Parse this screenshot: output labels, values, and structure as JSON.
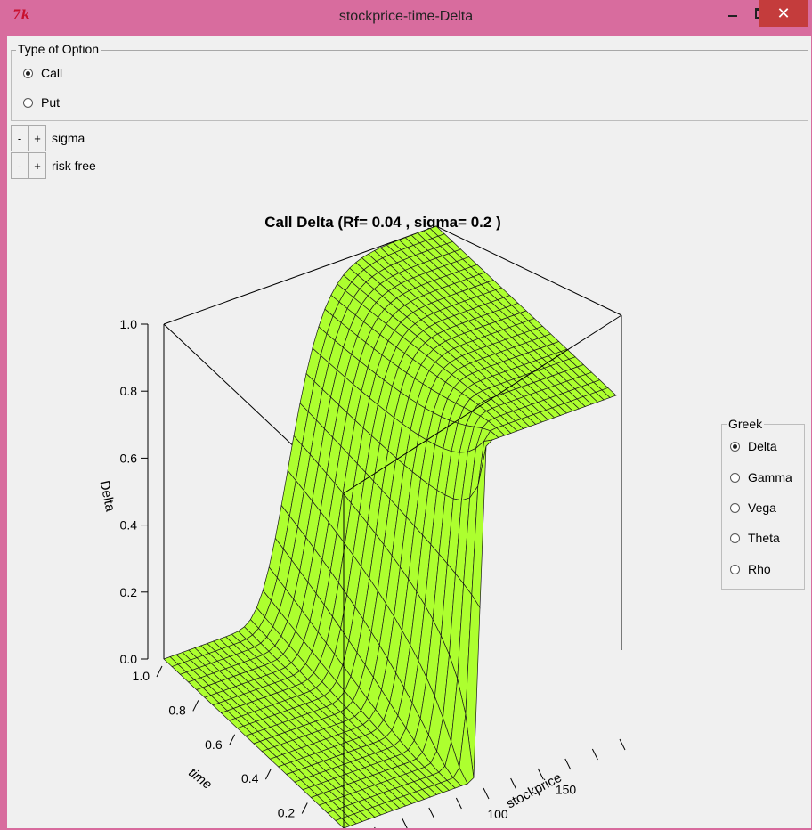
{
  "window": {
    "title": "stockprice-time-Delta",
    "app_icon": "7k",
    "close_glyph": "✕"
  },
  "type_group": {
    "label": "Type of Option",
    "options": [
      {
        "label": "Call",
        "selected": true
      },
      {
        "label": "Put",
        "selected": false
      }
    ]
  },
  "steppers": [
    {
      "minus": "-",
      "plus": "+",
      "label": "sigma"
    },
    {
      "minus": "-",
      "plus": "+",
      "label": "risk free"
    }
  ],
  "greek_group": {
    "label": "Greek",
    "options": [
      {
        "label": "Delta",
        "selected": true
      },
      {
        "label": "Gamma",
        "selected": false
      },
      {
        "label": "Vega",
        "selected": false
      },
      {
        "label": "Theta",
        "selected": false
      },
      {
        "label": "Rho",
        "selected": false
      }
    ]
  },
  "chart_data": {
    "type": "surface",
    "title": "Call Delta (Rf=  0.04 , sigma=  0.2 )",
    "zlabel": "Delta",
    "xlabel": "stockprice",
    "ylabel": "time",
    "z_ticks": [
      "0.0",
      "0.2",
      "0.4",
      "0.6",
      "0.8",
      "1.0"
    ],
    "x_ticks": [
      "100",
      "150"
    ],
    "y_ticks": [
      "1.0",
      "0.8",
      "0.6",
      "0.4",
      "0.2"
    ],
    "zlim": [
      0,
      1
    ],
    "strike": 100,
    "risk_free": 0.04,
    "sigma": 0.2,
    "surface_color": "#adff2f"
  }
}
